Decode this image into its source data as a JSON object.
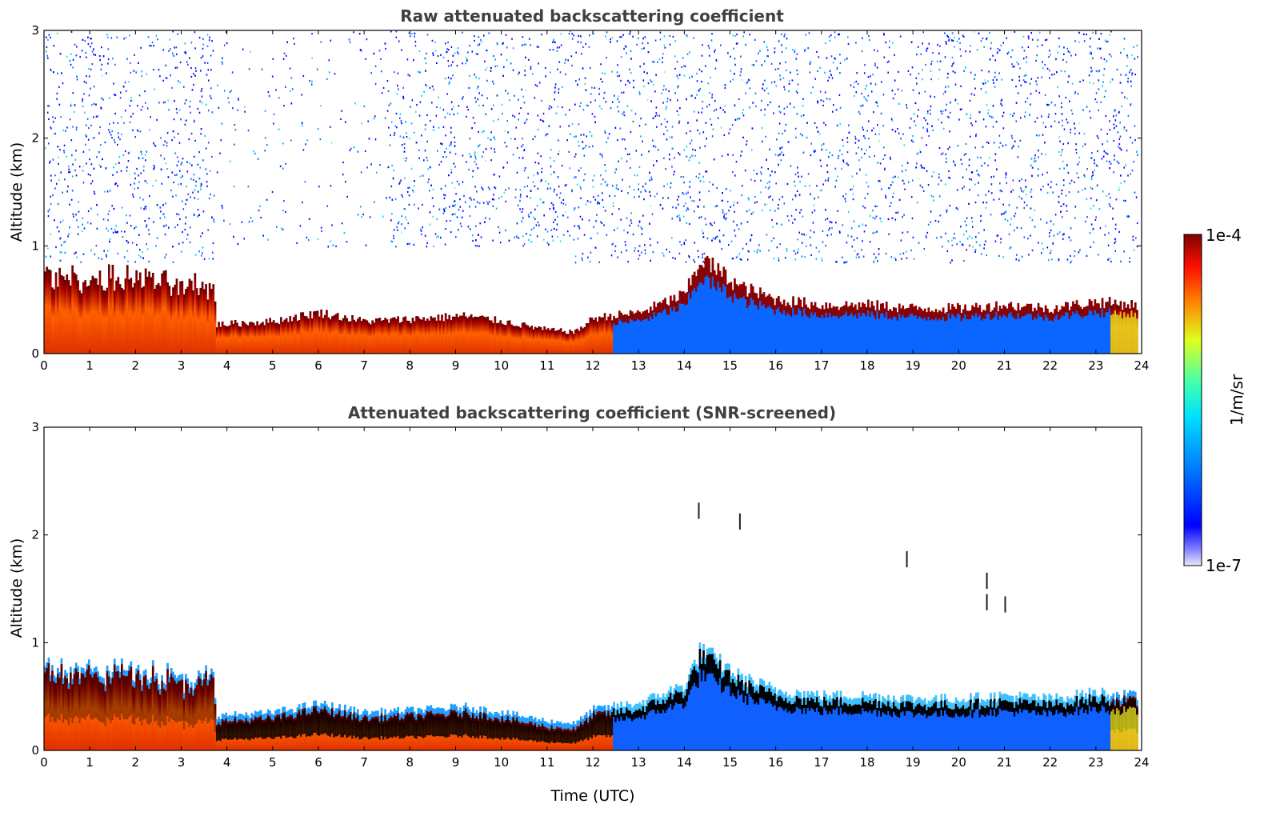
{
  "chart_data": [
    {
      "type": "heatmap",
      "title": "Raw attenuated backscattering coefficient",
      "xlabel": "",
      "ylabel": "Altitude (km)",
      "xlim": [
        0,
        24
      ],
      "ylim": [
        0,
        3
      ],
      "x_ticks": [
        "0",
        "1",
        "2",
        "3",
        "4",
        "5",
        "6",
        "7",
        "8",
        "9",
        "10",
        "11",
        "12",
        "13",
        "14",
        "15",
        "16",
        "17",
        "18",
        "19",
        "20",
        "21",
        "22",
        "23",
        "24"
      ],
      "y_ticks": [
        "0",
        "1",
        "2",
        "3"
      ],
      "screened": false,
      "layer_top_km": [
        {
          "t": 0.0,
          "h": 0.72
        },
        {
          "t": 1.0,
          "h": 0.68
        },
        {
          "t": 2.0,
          "h": 0.7
        },
        {
          "t": 3.0,
          "h": 0.62
        },
        {
          "t": 3.7,
          "h": 0.62
        },
        {
          "t": 3.75,
          "h": 0.27
        },
        {
          "t": 5.0,
          "h": 0.3
        },
        {
          "t": 6.0,
          "h": 0.38
        },
        {
          "t": 7.0,
          "h": 0.3
        },
        {
          "t": 8.0,
          "h": 0.32
        },
        {
          "t": 9.2,
          "h": 0.35
        },
        {
          "t": 10.0,
          "h": 0.3
        },
        {
          "t": 11.0,
          "h": 0.22
        },
        {
          "t": 11.6,
          "h": 0.2
        },
        {
          "t": 12.0,
          "h": 0.33
        },
        {
          "t": 13.0,
          "h": 0.38
        },
        {
          "t": 14.0,
          "h": 0.55
        },
        {
          "t": 14.35,
          "h": 0.88
        },
        {
          "t": 15.2,
          "h": 0.62
        },
        {
          "t": 16.0,
          "h": 0.5
        },
        {
          "t": 17.0,
          "h": 0.45
        },
        {
          "t": 18.0,
          "h": 0.45
        },
        {
          "t": 19.0,
          "h": 0.42
        },
        {
          "t": 20.0,
          "h": 0.42
        },
        {
          "t": 21.0,
          "h": 0.45
        },
        {
          "t": 22.0,
          "h": 0.42
        },
        {
          "t": 23.0,
          "h": 0.48
        },
        {
          "t": 23.9,
          "h": 0.45
        }
      ],
      "noise_region_km": [
        1.0,
        3.0
      ]
    },
    {
      "type": "heatmap",
      "title": "Attenuated backscattering coefficient (SNR-screened)",
      "xlabel": "Time (UTC)",
      "ylabel": "Altitude (km)",
      "xlim": [
        0,
        24
      ],
      "ylim": [
        0,
        3
      ],
      "x_ticks": [
        "0",
        "1",
        "2",
        "3",
        "4",
        "5",
        "6",
        "7",
        "8",
        "9",
        "10",
        "11",
        "12",
        "13",
        "14",
        "15",
        "16",
        "17",
        "18",
        "19",
        "20",
        "21",
        "22",
        "23",
        "24"
      ],
      "y_ticks": [
        "0",
        "1",
        "2",
        "3"
      ],
      "screened": true,
      "isolated_features": [
        {
          "t": 14.3,
          "h": 2.2
        },
        {
          "t": 15.2,
          "h": 2.1
        },
        {
          "t": 18.85,
          "h": 1.75
        },
        {
          "t": 20.6,
          "h": 1.55
        },
        {
          "t": 20.6,
          "h": 1.35
        },
        {
          "t": 21.0,
          "h": 1.33
        }
      ]
    }
  ],
  "colorbar": {
    "label": "1/m/sr",
    "max_label": "1e-4",
    "min_label": "1e-7",
    "colormap": "jet",
    "colors": [
      "#e8e8f8",
      "#0000ff",
      "#00aaff",
      "#00ffcc",
      "#ffff00",
      "#ff8000",
      "#ff0000",
      "#800000"
    ]
  }
}
